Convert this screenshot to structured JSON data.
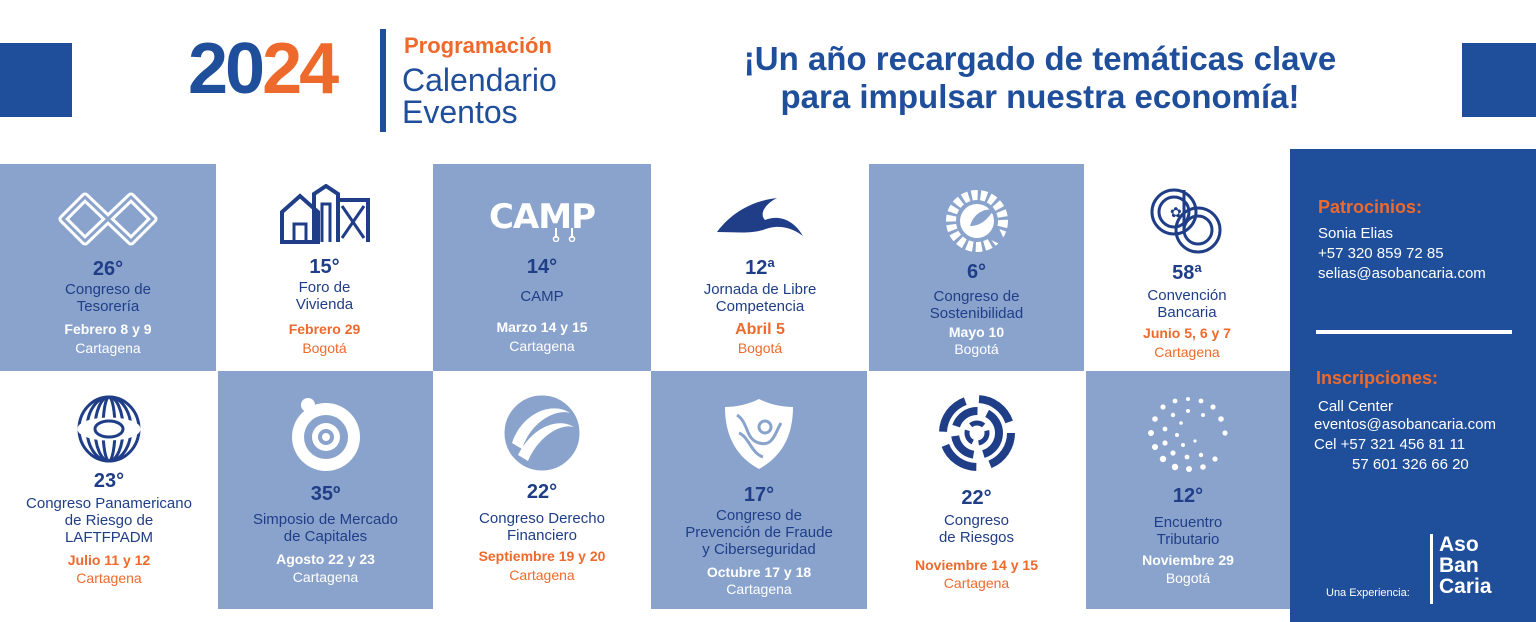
{
  "header": {
    "year_part1": "20",
    "year_part2": "24",
    "programacion": "Programación",
    "calendario": "Calendario",
    "eventos": "Eventos",
    "headline_line1": "¡Un año recargado de temáticas clave",
    "headline_line2": "para impulsar nuestra economía!"
  },
  "colors": {
    "brand_blue": "#1f4e9b",
    "accent_orange": "#ee6a2c",
    "tile_blue": "#8aa3cc"
  },
  "events": [
    {
      "icon": "tesoreria-infinity-icon",
      "number": "26°",
      "name": "Congreso de\nTesorería",
      "date": "Febrero 8 y 9",
      "city": "Cartagena"
    },
    {
      "icon": "vivienda-houses-icon",
      "number": "15°",
      "name": "Foro de\nVivienda",
      "date": "Febrero 29",
      "city": "Bogotá"
    },
    {
      "icon": "camp-logo-icon",
      "number": "14°",
      "name": "CAMP",
      "date": "Marzo 14 y 15",
      "city": "Cartagena"
    },
    {
      "icon": "wave-icon",
      "number": "12ª",
      "name": "Jornada de Libre\nCompetencia",
      "date": "Abril 5",
      "city": "Bogotá"
    },
    {
      "icon": "sustainability-leaf-gear-icon",
      "number": "6°",
      "name": "Congreso de\nSostenibilidad",
      "date": "Mayo 10",
      "city": "Bogotá"
    },
    {
      "icon": "convencion-cb-icon",
      "number": "58ª",
      "name": "Convención\nBancaria",
      "date": "Junio 5, 6 y 7",
      "city": "Cartagena"
    },
    {
      "icon": "spiral-sphere-icon",
      "number": "23°",
      "name": "Congreso Panamericano\nde Riesgo de\nLAFTFPADM",
      "date": "Julio 11 y 12",
      "city": "Cartagena"
    },
    {
      "icon": "capital-circle-icon",
      "number": "35º",
      "name": "Simposio de Mercado\nde Capitales",
      "date": "Agosto 22 y 23",
      "city": "Cartagena"
    },
    {
      "icon": "ring-sphere-icon",
      "number": "22°",
      "name": "Congreso Derecho\nFinanciero",
      "date": "Septiembre 19 y 20",
      "city": "Cartagena"
    },
    {
      "icon": "fraud-shield-icon",
      "number": "17°",
      "name": "Congreso de\nPrevención de Fraude\ny Ciberseguridad",
      "date": "Octubre 17 y 18",
      "city": "Cartagena"
    },
    {
      "icon": "risk-radial-icon",
      "number": "22°",
      "name": "Congreso\nde Riesgos",
      "date": "Noviembre 14 y 15",
      "city": "Cartagena"
    },
    {
      "icon": "dotted-circle-icon",
      "number": "12°",
      "name": "Encuentro\nTributario",
      "date": "Noviembre 29",
      "city": "Bogotá"
    }
  ],
  "sidebar": {
    "patrocinios_title": "Patrocinios:",
    "patrocinios_name": "Sonia Elias",
    "patrocinios_phone": "+57 320 859 72 85",
    "patrocinios_email": "selias@asobancaria.com",
    "inscripciones_title": "Inscripciones:",
    "insc_line1": "Call Center",
    "insc_line2": "eventos@asobancaria.com",
    "insc_line3": "Cel +57 321 456 81 11",
    "insc_line4": "57 601 326 66 20",
    "experiencia": "Una Experiencia:",
    "logo_1": "Aso",
    "logo_2": "Ban",
    "logo_3": "Caria"
  }
}
